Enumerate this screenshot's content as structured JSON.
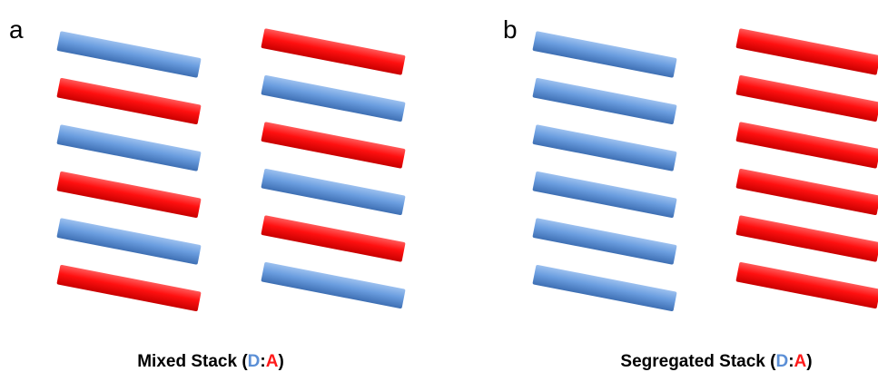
{
  "panels": [
    {
      "label": "a",
      "caption": {
        "prefix": "Mixed Stack (",
        "donor": "D",
        "sep": ":",
        "acceptor": "A",
        "suffix": ")"
      }
    },
    {
      "label": "b",
      "caption": {
        "prefix": "Segregated Stack (",
        "donor": "D",
        "sep": ":",
        "acceptor": "A",
        "suffix": ")"
      }
    }
  ]
}
